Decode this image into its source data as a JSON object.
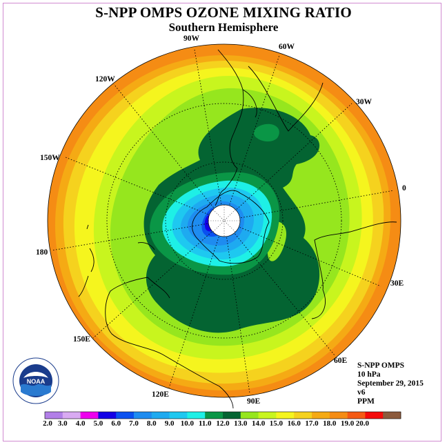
{
  "title": "S-NPP OMPS OZONE MIXING RATIO",
  "subtitle": "Southern Hemisphere",
  "logo_text": "NOAA",
  "longitude_labels": {
    "lon_90w": "90W",
    "lon_60w": "60W",
    "lon_120w": "120W",
    "lon_30w": "30W",
    "lon_150w": "150W",
    "lon_0": "0",
    "lon_180": "180",
    "lon_30e": "30E",
    "lon_150e": "150E",
    "lon_60e": "60E",
    "lon_120e": "120E",
    "lon_90e": "90E"
  },
  "info": {
    "instrument": "S-NPP OMPS",
    "level": "10 hPa",
    "date": "September 29, 2015",
    "version": "v6",
    "units": "PPM"
  },
  "colorbar": {
    "ticks": [
      "2.0",
      "3.0",
      "4.0",
      "5.0",
      "6.0",
      "7.0",
      "8.0",
      "9.0",
      "10.0",
      "11.0",
      "12.0",
      "13.0",
      "14.0",
      "15.0",
      "16.0",
      "17.0",
      "18.0",
      "19.0",
      "20.0"
    ],
    "colors": [
      "#b27fe8",
      "#d9aaf2",
      "#ee00ee",
      "#1400e6",
      "#0a50f0",
      "#1e8cf0",
      "#1eaaf0",
      "#1ec8f0",
      "#1ef0e6",
      "#0a9646",
      "#046432",
      "#96e61e",
      "#c8f51e",
      "#f5f51e",
      "#f5d21e",
      "#f5aa14",
      "#f58c14",
      "#f55a14",
      "#f50a0a",
      "#8c5a3c"
    ]
  },
  "map_colors": {
    "ppm_10": "#1ef0e6",
    "ppm_11": "#0a9646",
    "ppm_12": "#046432",
    "ppm_13": "#96e61e",
    "ppm_14": "#c8f51e",
    "ppm_15": "#f5f51e",
    "ppm_16": "#f5d21e",
    "ppm_17": "#f5aa14",
    "ppm_18": "#f58c14",
    "ppm_9": "#1ec8f0",
    "ppm_8": "#1eaaf0",
    "ppm_7": "#1e8cf0",
    "ppm_6": "#0a50f0",
    "ppm_5": "#1400e6"
  }
}
